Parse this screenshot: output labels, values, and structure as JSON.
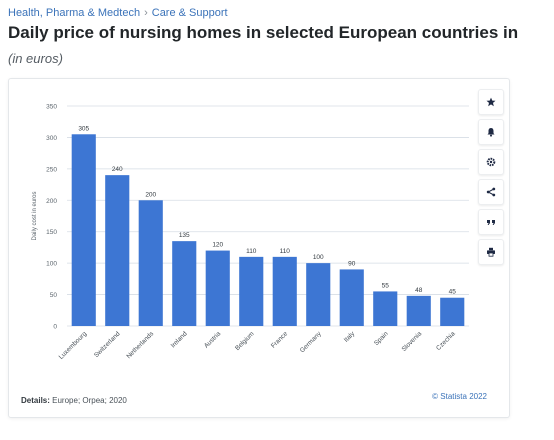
{
  "breadcrumb": {
    "items": [
      "Health, Pharma & Medtech",
      "Care & Support"
    ],
    "separator": "›"
  },
  "page": {
    "title": "Daily price of nursing homes in selected European countries in",
    "subtitle": "(in euros)"
  },
  "toolbar": {
    "icons": [
      "star-icon",
      "bell-icon",
      "gear-icon",
      "share-icon",
      "quote-icon",
      "print-icon"
    ]
  },
  "footer": {
    "details_label": "Details:",
    "details_text": "Europe; Orpea; 2020",
    "credit": "© Statista 2022"
  },
  "colors": {
    "bar": "#3d76d3",
    "grid": "#d6dde5",
    "link": "#3b73b9"
  },
  "chart_data": {
    "type": "bar",
    "categories": [
      "Luxembourg",
      "Switzerland",
      "Netherlands",
      "Ireland",
      "Austria",
      "Belgium",
      "France",
      "Germany",
      "Italy",
      "Spain",
      "Slovenia",
      "Czechia"
    ],
    "values": [
      305,
      240,
      200,
      135,
      120,
      110,
      110,
      100,
      90,
      55,
      48,
      45
    ],
    "ylabel": "Daily cost in euros",
    "ylim": [
      0,
      350
    ],
    "yticks": [
      0,
      50,
      100,
      150,
      200,
      250,
      300,
      350
    ],
    "grid": true,
    "data_labels": true
  }
}
